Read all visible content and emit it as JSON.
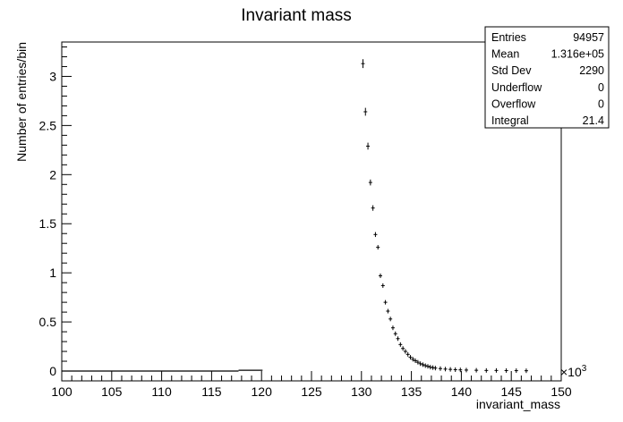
{
  "chart_data": {
    "type": "scatter",
    "title": "Invariant mass",
    "xlabel": "invariant_mass",
    "ylabel": "Number of entries/bin",
    "x_multiplier_label": "×10",
    "x_multiplier_exp": "3",
    "xlim": [
      100,
      150
    ],
    "ylim": [
      -0.1,
      3.35
    ],
    "x_ticks": [
      "100",
      "105",
      "110",
      "115",
      "120",
      "125",
      "130",
      "135",
      "140",
      "145",
      "150"
    ],
    "y_ticks": [
      "0",
      "0.5",
      "1",
      "1.5",
      "2",
      "2.5",
      "3"
    ],
    "y_tick_values": [
      0,
      0.5,
      1,
      1.5,
      2,
      2.5,
      3
    ],
    "grid": false,
    "errorbar_points": {
      "x": [
        130.15,
        130.4,
        130.65,
        130.9,
        131.15,
        131.4,
        131.65,
        131.9,
        132.15,
        132.4,
        132.65,
        132.9,
        133.15,
        133.4,
        133.65,
        133.9,
        134.15,
        134.4,
        134.65,
        134.9,
        135.15,
        135.4,
        135.65,
        135.9,
        136.15,
        136.4,
        136.65,
        136.9,
        137.15,
        137.4,
        137.9,
        138.4,
        138.9,
        139.4,
        139.9,
        140.5,
        141.5,
        142.5,
        143.5,
        144.5,
        145.5,
        146.5
      ],
      "y": [
        3.13,
        2.64,
        2.29,
        1.92,
        1.66,
        1.39,
        1.26,
        0.97,
        0.87,
        0.7,
        0.61,
        0.53,
        0.44,
        0.38,
        0.33,
        0.27,
        0.23,
        0.2,
        0.17,
        0.14,
        0.12,
        0.105,
        0.09,
        0.075,
        0.065,
        0.055,
        0.048,
        0.04,
        0.035,
        0.03,
        0.025,
        0.02,
        0.017,
        0.014,
        0.012,
        0.01,
        0.008,
        0.006,
        0.006,
        0.005,
        0.004,
        0.003
      ],
      "yerr": [
        0.045,
        0.04,
        0.035,
        0.03,
        0.028,
        0.025,
        0.022,
        0.02,
        0.018,
        0.016,
        0.015,
        0.014,
        0.012,
        0.011,
        0.01,
        0.009,
        0.008,
        0.008,
        0.007,
        0.007,
        0.006,
        0.006,
        0.005,
        0.005,
        0.005,
        0.004,
        0.004,
        0.004,
        0.003,
        0.003,
        0.003,
        0.003,
        0.002,
        0.002,
        0.002,
        0.002,
        0.002,
        0.002,
        0.002,
        0.002,
        0.002,
        0.002
      ]
    },
    "baseline_segments": [
      {
        "x0": 100.0,
        "x1": 117.7,
        "y": 0.0
      },
      {
        "x0": 117.7,
        "x1": 120.1,
        "y": 0.008
      }
    ],
    "stats_box": {
      "position": "top-right",
      "rows": [
        {
          "label": "Entries",
          "value": "94957"
        },
        {
          "label": "Mean",
          "value": "1.316e+05"
        },
        {
          "label": "Std Dev",
          "value": "2290"
        },
        {
          "label": "Underflow",
          "value": "0"
        },
        {
          "label": "Overflow",
          "value": "0"
        },
        {
          "label": "Integral",
          "value": "21.4"
        }
      ]
    }
  }
}
